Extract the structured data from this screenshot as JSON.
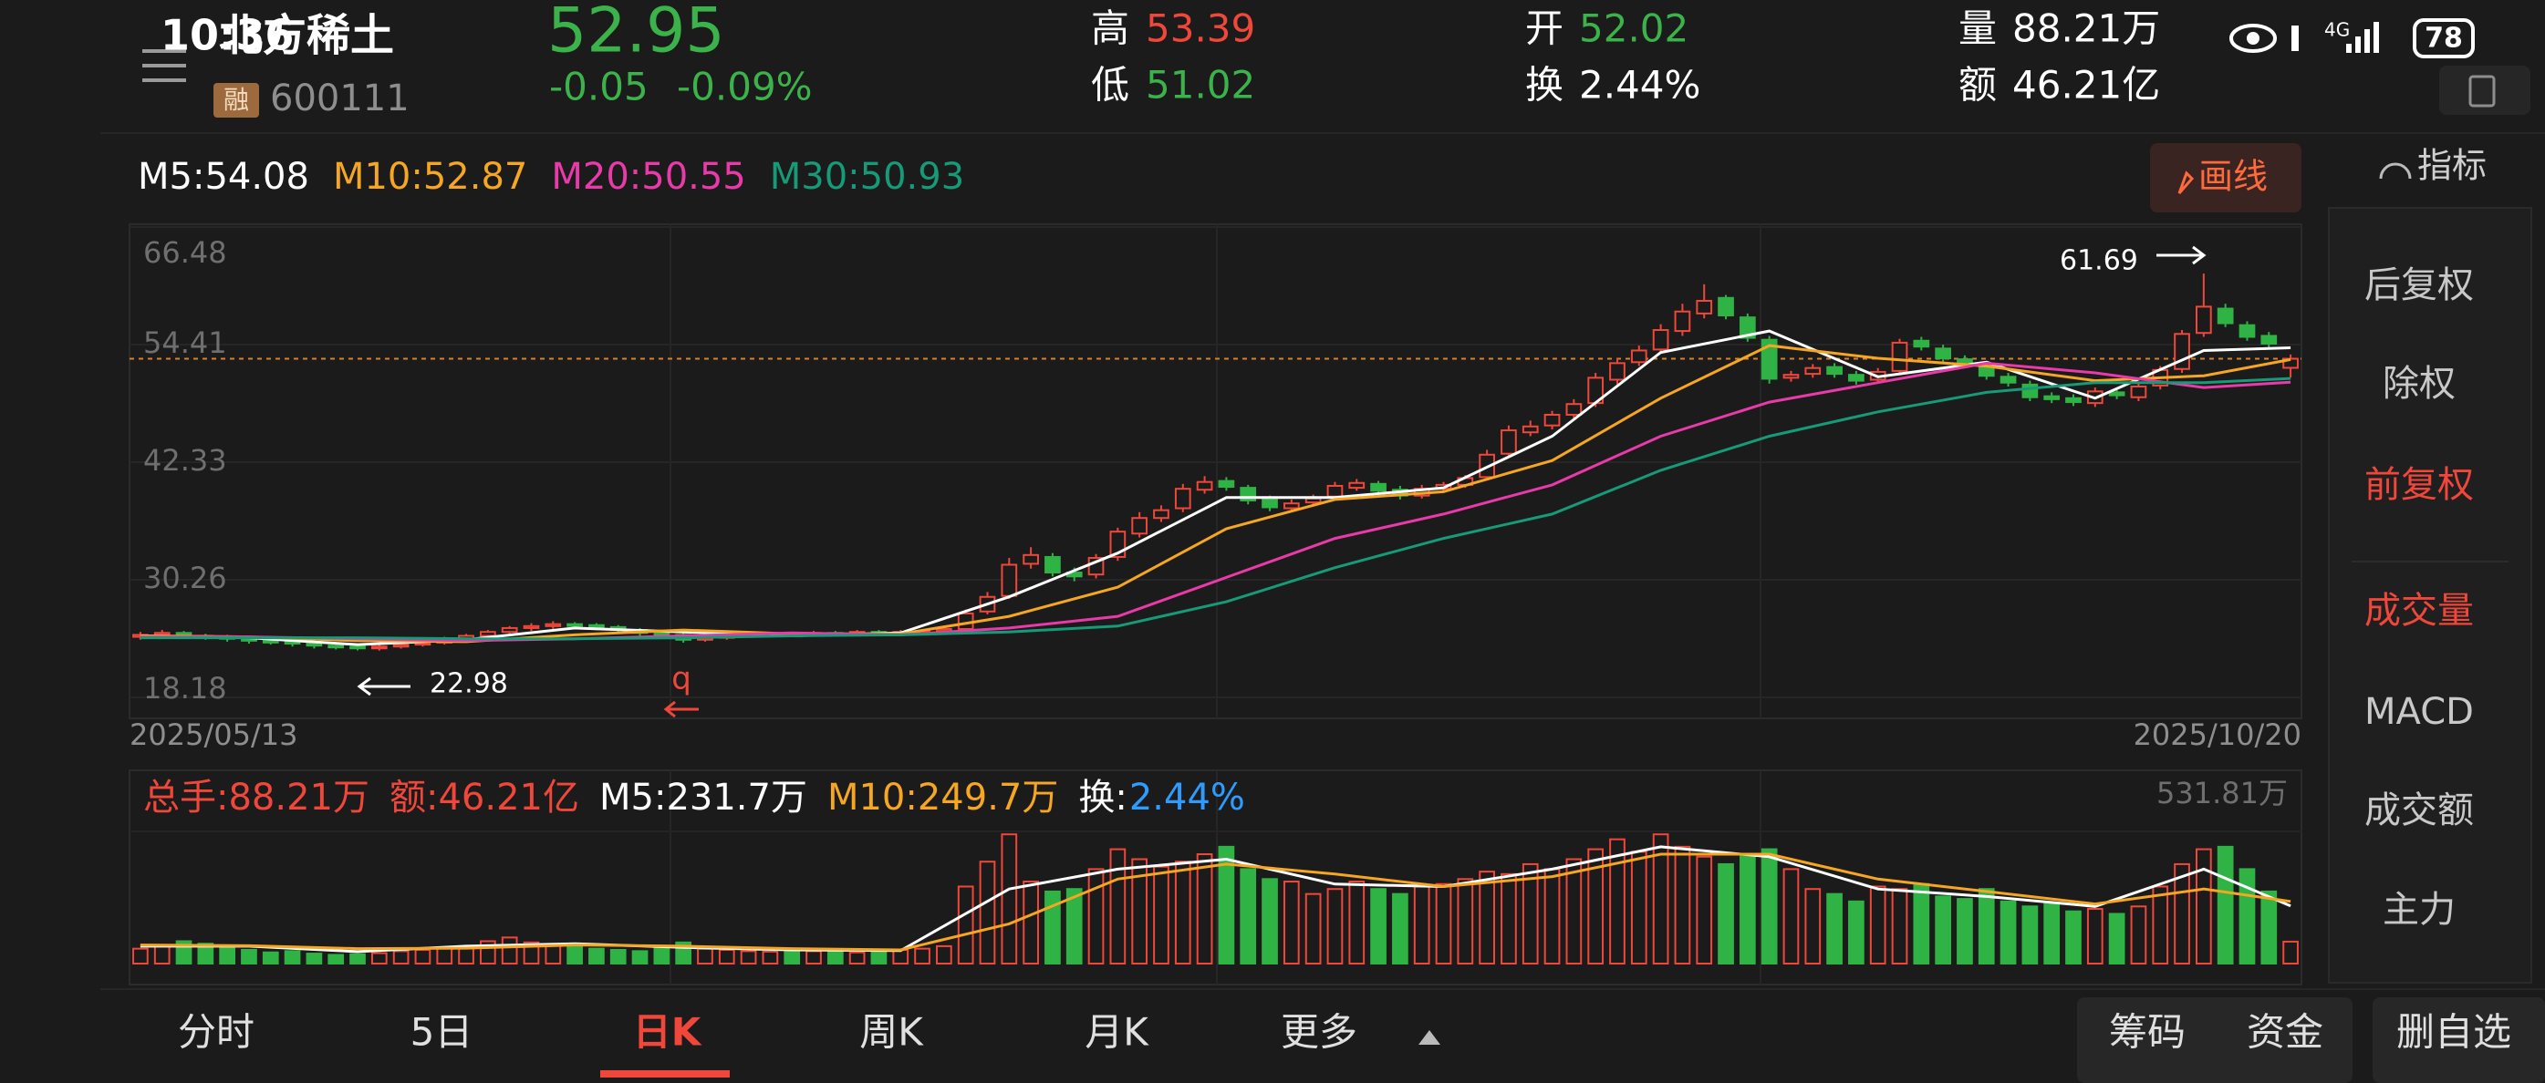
{
  "status": {
    "time": "10:36",
    "network": "4G",
    "battery": "78"
  },
  "stock": {
    "name": "北方稀土",
    "badge": "融",
    "code": "600111",
    "price": "52.95",
    "change": "-0.05",
    "change_pct": "-0.09%"
  },
  "quote": {
    "high_label": "高",
    "high": "53.39",
    "low_label": "低",
    "low": "51.02",
    "open_label": "开",
    "open": "52.02",
    "turnover_label": "换",
    "turnover": "2.44%",
    "volume_label": "量",
    "volume": "88.21万",
    "amount_label": "额",
    "amount": "46.21亿"
  },
  "draw_button": "画线",
  "indicator_button": "指标",
  "sidebar": {
    "adjust": [
      "后复权",
      "除权",
      "前复权"
    ],
    "indicators": [
      "成交量",
      "MACD",
      "成交额",
      "主力"
    ]
  },
  "tabs": [
    "分时",
    "5日",
    "日K",
    "周K",
    "月K",
    "更多"
  ],
  "actions": [
    "筹码",
    "资金"
  ],
  "remove": "删自选",
  "chart_data": {
    "type": "candlestick",
    "x_labels": [
      "2025/05/13",
      "2025/10/20"
    ],
    "annotations": [
      "61.69",
      "22.98",
      "q"
    ],
    "ylim": [
      18.18,
      66.48
    ],
    "yticks": [
      66.48,
      54.41,
      42.33,
      30.26,
      18.18
    ],
    "grid": true,
    "up_color": "#f0473a",
    "down_color": "#2fb344",
    "candles": {
      "open": [
        24.4,
        24.6,
        24.8,
        24.5,
        24.4,
        24.2,
        24.0,
        23.9,
        23.7,
        23.5,
        23.4,
        23.3,
        23.4,
        23.6,
        23.8,
        24.2,
        24.5,
        24.9,
        25.3,
        25.5,
        25.7,
        25.6,
        25.4,
        25.1,
        24.8,
        24.6,
        24.1,
        24.3,
        24.5,
        24.6,
        24.7,
        24.6,
        24.8,
        24.7,
        24.9,
        24.8,
        24.9,
        25.0,
        25.2,
        27.0,
        28.6,
        31.9,
        32.6,
        31.0,
        30.8,
        32.6,
        35.0,
        36.6,
        37.6,
        39.5,
        40.4,
        39.7,
        38.5,
        37.6,
        38.2,
        38.8,
        39.7,
        40.1,
        39.5,
        38.9,
        39.6,
        40.0,
        40.8,
        43.2,
        45.4,
        46.1,
        47.2,
        48.4,
        50.8,
        52.6,
        53.9,
        55.8,
        57.6,
        59.2,
        57.2,
        54.9,
        51.0,
        51.4,
        52.1,
        51.3,
        50.8,
        51.7,
        54.8,
        54.0,
        52.9,
        52.3,
        51.1,
        50.3,
        49.1,
        48.9,
        48.4,
        49.5,
        49.0,
        50.2,
        51.9,
        55.6,
        58.1,
        56.4,
        55.3,
        52.02
      ],
      "close": [
        24.6,
        24.8,
        24.5,
        24.4,
        24.2,
        24.0,
        23.9,
        23.7,
        23.5,
        23.4,
        23.3,
        23.4,
        23.6,
        23.8,
        24.2,
        24.5,
        24.9,
        25.3,
        25.5,
        25.7,
        25.6,
        25.4,
        25.1,
        24.8,
        24.6,
        24.1,
        24.3,
        24.5,
        24.6,
        24.7,
        24.6,
        24.8,
        24.7,
        24.9,
        24.8,
        24.9,
        25.0,
        25.2,
        26.8,
        28.5,
        31.8,
        32.8,
        31.0,
        30.6,
        32.5,
        35.2,
        36.6,
        37.4,
        39.6,
        40.3,
        39.8,
        38.4,
        37.7,
        38.1,
        38.6,
        39.9,
        40.2,
        39.4,
        38.9,
        39.6,
        40.0,
        40.7,
        43.1,
        45.6,
        46.0,
        47.2,
        48.3,
        51.0,
        52.5,
        53.8,
        55.9,
        57.8,
        58.9,
        57.4,
        55.1,
        50.9,
        51.3,
        52.0,
        51.4,
        50.7,
        51.6,
        54.6,
        54.2,
        53.0,
        52.4,
        51.2,
        50.5,
        49.0,
        48.8,
        48.5,
        49.6,
        49.2,
        50.1,
        51.8,
        55.5,
        58.3,
        56.6,
        55.2,
        54.5,
        52.95
      ],
      "high": [
        24.9,
        25.1,
        25.0,
        24.7,
        24.6,
        24.4,
        24.2,
        24.1,
        23.9,
        23.7,
        23.6,
        23.6,
        23.8,
        24.0,
        24.4,
        24.7,
        25.1,
        25.5,
        25.8,
        26.0,
        25.9,
        25.8,
        25.6,
        25.3,
        25.0,
        24.8,
        24.5,
        24.7,
        24.8,
        24.9,
        24.9,
        25.0,
        25.0,
        25.1,
        25.1,
        25.1,
        25.2,
        25.4,
        27.2,
        29.0,
        32.5,
        33.6,
        33.0,
        31.5,
        32.9,
        35.6,
        37.2,
        37.9,
        40.1,
        40.9,
        40.8,
        40.0,
        38.9,
        38.5,
        39.0,
        40.3,
        40.6,
        40.4,
        39.9,
        40.0,
        40.3,
        41.0,
        43.6,
        46.1,
        46.6,
        47.6,
        48.8,
        51.5,
        53.0,
        54.3,
        56.5,
        58.6,
        60.6,
        59.5,
        57.6,
        55.3,
        51.7,
        52.4,
        52.5,
        51.7,
        52.0,
        55.0,
        55.2,
        54.4,
        53.3,
        52.7,
        51.5,
        50.7,
        49.5,
        49.3,
        50.0,
        49.9,
        50.5,
        52.2,
        55.9,
        61.69,
        58.6,
        56.8,
        55.7,
        53.39
      ],
      "low": [
        24.1,
        24.3,
        24.2,
        24.1,
        23.9,
        23.7,
        23.6,
        23.4,
        23.2,
        23.1,
        23.0,
        22.98,
        23.2,
        23.4,
        23.6,
        24.0,
        24.3,
        24.6,
        25.0,
        25.2,
        25.3,
        25.1,
        24.8,
        24.5,
        24.3,
        23.8,
        23.9,
        24.1,
        24.3,
        24.4,
        24.4,
        24.4,
        24.5,
        24.5,
        24.6,
        24.6,
        24.7,
        24.8,
        25.0,
        26.7,
        28.3,
        31.4,
        30.6,
        30.1,
        30.4,
        32.2,
        34.6,
        36.2,
        37.2,
        39.1,
        39.4,
        38.0,
        37.3,
        37.2,
        37.9,
        38.5,
        39.4,
        39.0,
        38.5,
        38.6,
        39.3,
        39.7,
        40.5,
        42.8,
        45.0,
        45.7,
        46.8,
        48.0,
        50.3,
        52.2,
        53.5,
        55.3,
        57.1,
        57.0,
        54.7,
        50.4,
        50.6,
        51.0,
        51.0,
        50.3,
        50.4,
        51.3,
        53.8,
        52.6,
        52.0,
        50.8,
        50.1,
        48.6,
        48.4,
        48.1,
        48.0,
        48.8,
        48.6,
        49.8,
        51.5,
        55.2,
        56.2,
        54.8,
        54.1,
        51.02
      ]
    },
    "ma_x": [
      0,
      5,
      10,
      15,
      20,
      25,
      30,
      35,
      40,
      45,
      50,
      55,
      60,
      65,
      70,
      75,
      80,
      85,
      90,
      95,
      99
    ],
    "series": [
      {
        "name": "M5",
        "label": "M5:54.08",
        "color": "#ffffff",
        "values": [
          24.5,
          24.3,
          23.6,
          24.1,
          25.3,
          24.9,
          24.5,
          24.8,
          28.5,
          33.0,
          38.7,
          38.7,
          39.7,
          45.0,
          53.6,
          55.8,
          51.1,
          52.6,
          48.9,
          53.8,
          54.08
        ]
      },
      {
        "name": "M10",
        "label": "M10:52.87",
        "color": "#f5a623",
        "values": [
          24.5,
          24.4,
          24.0,
          23.9,
          24.6,
          25.1,
          24.7,
          24.7,
          26.5,
          29.5,
          35.5,
          38.5,
          39.3,
          42.5,
          48.9,
          54.3,
          53.0,
          52.2,
          50.7,
          51.2,
          52.87
        ]
      },
      {
        "name": "M20",
        "label": "M20:50.55",
        "color": "#e83aa8",
        "values": [
          24.4,
          24.4,
          24.2,
          24.0,
          24.2,
          24.5,
          24.8,
          24.6,
          25.3,
          26.5,
          30.5,
          34.5,
          37.0,
          40.0,
          45.0,
          48.5,
          50.5,
          52.5,
          51.5,
          50.0,
          50.55
        ]
      },
      {
        "name": "M30",
        "label": "M30:50.93",
        "color": "#169a78",
        "values": [
          24.3,
          24.3,
          24.3,
          24.2,
          24.2,
          24.3,
          24.5,
          24.6,
          24.9,
          25.5,
          28.0,
          31.5,
          34.5,
          37.0,
          41.5,
          45.0,
          47.5,
          49.5,
          50.5,
          50.5,
          50.93
        ]
      }
    ],
    "volume": {
      "header": [
        {
          "text": "总手:88.21万",
          "color": "#f0473a"
        },
        {
          "text": "额:46.21亿",
          "color": "#f0473a"
        },
        {
          "text": "M5:231.7万",
          "color": "#ffffff"
        },
        {
          "text": "M10:249.7万",
          "color": "#f5a623"
        },
        {
          "text": "换:",
          "color": "#ffffff"
        },
        {
          "text": "2.44%",
          "color": "#2e9cff"
        }
      ],
      "ylim": [
        0,
        531.81
      ],
      "yticks": [
        {
          "value": 531.81,
          "label": "531.81万"
        }
      ],
      "values": [
        60,
        75,
        90,
        80,
        70,
        55,
        45,
        50,
        40,
        35,
        38,
        42,
        50,
        55,
        65,
        70,
        90,
        105,
        85,
        75,
        70,
        60,
        55,
        50,
        65,
        85,
        60,
        55,
        50,
        48,
        52,
        50,
        48,
        45,
        50,
        55,
        60,
        70,
        310,
        410,
        520,
        330,
        290,
        300,
        380,
        460,
        420,
        390,
        410,
        440,
        470,
        380,
        340,
        330,
        280,
        300,
        330,
        300,
        280,
        310,
        320,
        340,
        370,
        360,
        400,
        380,
        420,
        460,
        500,
        450,
        520,
        470,
        430,
        400,
        440,
        460,
        380,
        300,
        280,
        250,
        310,
        300,
        320,
        270,
        260,
        300,
        250,
        230,
        240,
        210,
        220,
        200,
        230,
        310,
        400,
        460,
        470,
        380,
        290,
        88.21
      ],
      "series": [
        {
          "name": "M5",
          "color": "#ffffff",
          "values": [
            70,
            70,
            48,
            70,
            80,
            65,
            55,
            52,
            300,
            380,
            420,
            320,
            310,
            380,
            470,
            430,
            300,
            270,
            230,
            380,
            231.7
          ]
        },
        {
          "name": "M10",
          "color": "#f5a623",
          "values": [
            75,
            72,
            60,
            62,
            75,
            70,
            60,
            55,
            160,
            340,
            400,
            360,
            310,
            350,
            440,
            440,
            340,
            290,
            240,
            300,
            249.7
          ]
        }
      ]
    }
  }
}
